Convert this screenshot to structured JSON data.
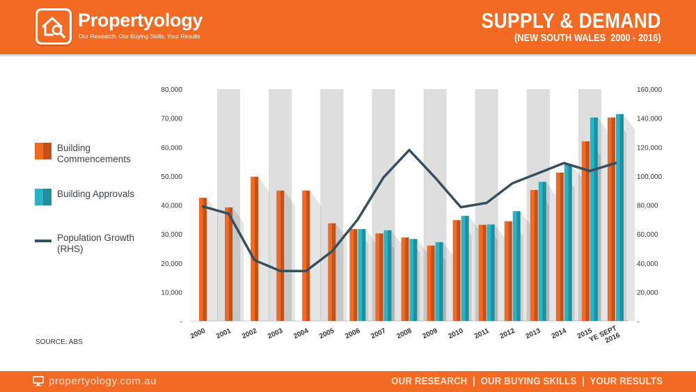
{
  "header": {
    "brand": "Propertyology",
    "tagline": "Our Research. Our Buying Skills. Your Results",
    "title": "SUPPLY & DEMAND",
    "subtitle": "(NEW SOUTH WALES  2000 - 2016)"
  },
  "legend": {
    "commencements": "Building Commencements",
    "approvals": "Building Approvals",
    "population": "Population Growth (RHS)"
  },
  "source": "SOURCE: ABS",
  "footer": {
    "url": "propertyology.com.au",
    "slogan": "OUR RESEARCH  |  OUR BUYING SKILLS  |  YOUR RESULTS"
  },
  "colors": {
    "orange": "#ef6a24",
    "teal": "#2bb3c4",
    "line": "#35505c",
    "band": "#dedede"
  },
  "chart_data": {
    "type": "bar",
    "categories": [
      "2000",
      "2001",
      "2002",
      "2003",
      "2004",
      "2005",
      "2006",
      "2007",
      "2008",
      "2009",
      "2010",
      "2011",
      "2012",
      "2013",
      "2014",
      "2015",
      "YE SEPT 2016"
    ],
    "series": [
      {
        "name": "Building Commencements",
        "axis": "left",
        "values": [
          42500,
          39200,
          49800,
          45000,
          45000,
          33700,
          31700,
          30200,
          28800,
          26000,
          34800,
          33200,
          34400,
          45200,
          51200,
          62000,
          70200
        ]
      },
      {
        "name": "Building Approvals",
        "axis": "left",
        "values": [
          null,
          null,
          null,
          null,
          null,
          null,
          31700,
          31300,
          28300,
          27200,
          36300,
          33300,
          37900,
          48000,
          54000,
          70200,
          71400
        ]
      },
      {
        "name": "Population Growth (RHS)",
        "axis": "right",
        "type": "line",
        "values": [
          79000,
          74000,
          42000,
          34500,
          34500,
          48000,
          70000,
          99000,
          118000,
          99000,
          78500,
          81500,
          95000,
          102000,
          109000,
          103500,
          109000
        ]
      }
    ],
    "yleft": {
      "ticks": [
        "-",
        "10,000",
        "20,000",
        "30,000",
        "40,000",
        "50,000",
        "60,000",
        "70,000",
        "80,000"
      ],
      "range": [
        0,
        80000
      ]
    },
    "yright": {
      "ticks": [
        "-",
        "20,000",
        "40,000",
        "60,000",
        "80,000",
        "100,000",
        "120,000",
        "140,000",
        "160,000"
      ],
      "range": [
        0,
        160000
      ]
    },
    "xlabel": "",
    "ylabel": "",
    "grid": false,
    "legend_position": "left"
  }
}
